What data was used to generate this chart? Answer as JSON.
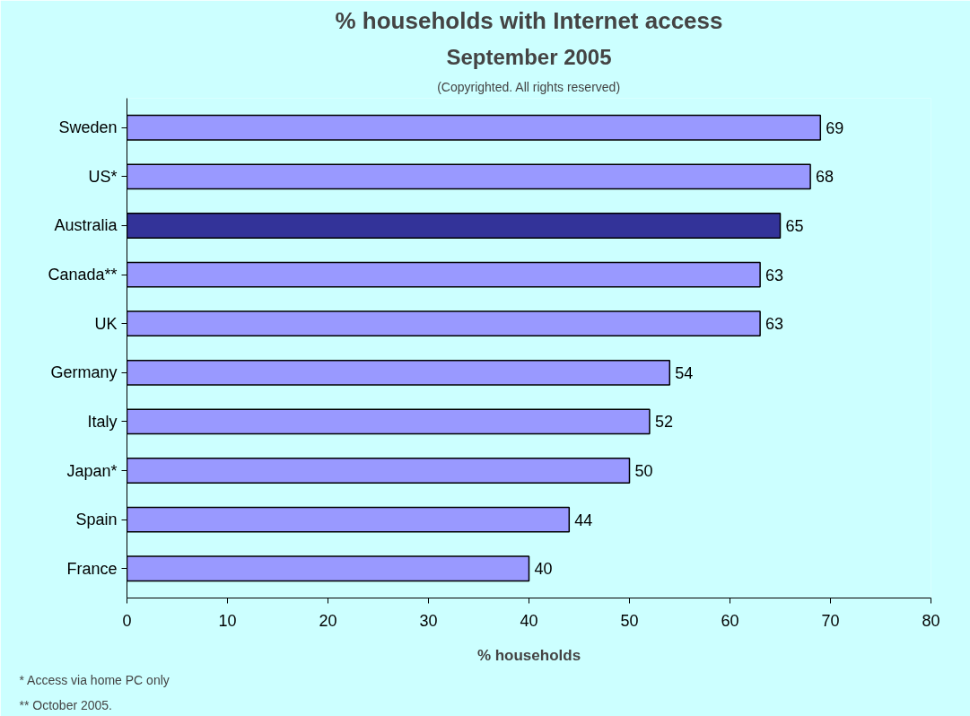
{
  "chart_data": {
    "type": "bar",
    "orientation": "horizontal",
    "title": "% households with Internet access",
    "subtitle": "September 2005",
    "xlabel": "% households",
    "annotations": [
      "(Copyrighted. All rights reserved)",
      "*  Access via home PC only",
      "** October 2005."
    ],
    "categories": [
      "Sweden",
      "US*",
      "Australia",
      "Canada**",
      "UK",
      "Germany",
      "Italy",
      "Japan*",
      "Spain",
      "France"
    ],
    "values": [
      69,
      68,
      65,
      63,
      63,
      54,
      52,
      50,
      44,
      40
    ],
    "colors": [
      "#9999ff",
      "#9999ff",
      "#333399",
      "#9999ff",
      "#9999ff",
      "#9999ff",
      "#9999ff",
      "#9999ff",
      "#9999ff",
      "#9999ff"
    ],
    "xlim": [
      0,
      80
    ],
    "xticks": [
      0,
      10,
      20,
      30,
      40,
      50,
      60,
      70,
      80
    ],
    "grid": false,
    "data_labels": true
  }
}
